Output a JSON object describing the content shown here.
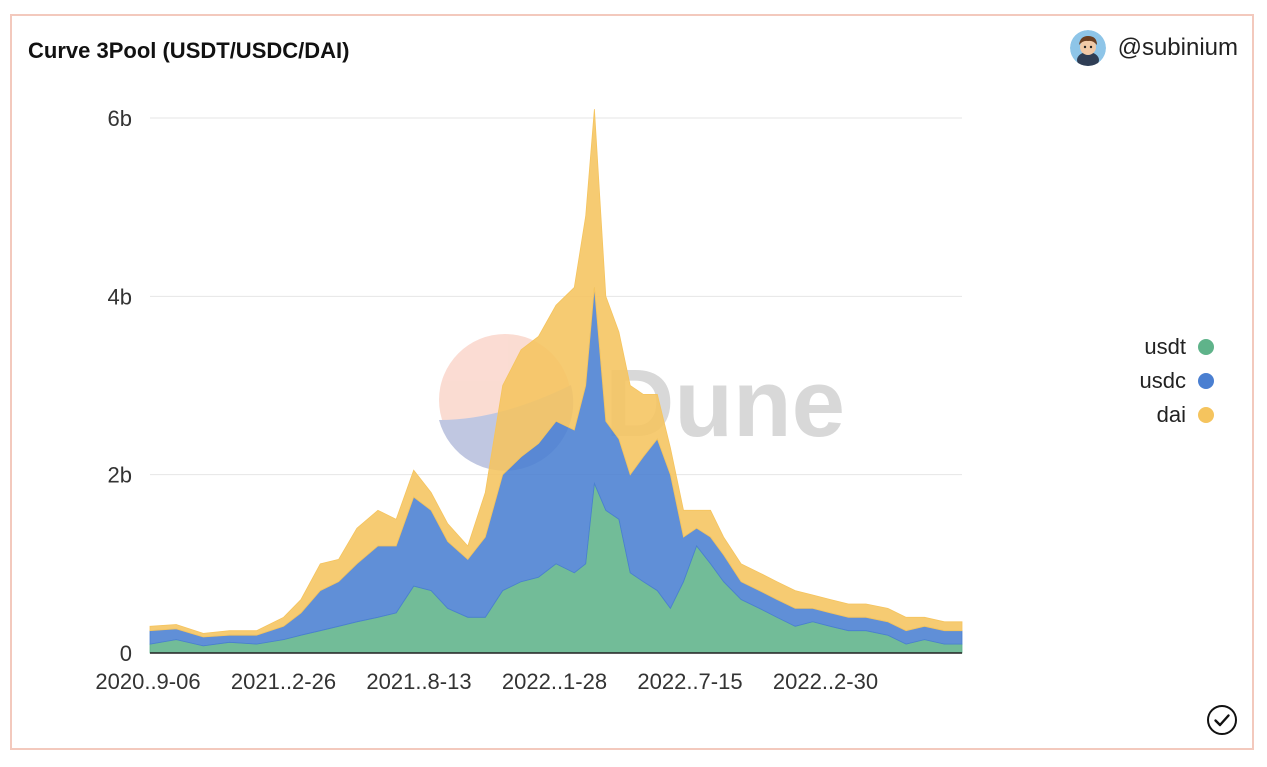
{
  "header": {
    "title": "Curve 3Pool (USDT/USDC/DAI)",
    "author": "@subinium"
  },
  "icons": {
    "avatar": "avatar-icon",
    "verified": "check-circle-icon",
    "watermark": "dune-logo"
  },
  "watermark_text": "Dune",
  "colors": {
    "usdt": "#5fb38a",
    "usdc": "#4a7fd1",
    "dai": "#f5c45e",
    "border": "#f3c9bd",
    "grid": "#e6e6e6"
  },
  "chart_data": {
    "type": "area",
    "stacked": true,
    "title": "Curve 3Pool (USDT/USDC/DAI)",
    "x_tick_labels": [
      "2020..9-06",
      "2021..2-26",
      "2021..8-13",
      "2022..1-28",
      "2022..7-15",
      "2022..2-30"
    ],
    "y_tick_labels": [
      "0",
      "2b",
      "4b",
      "6b"
    ],
    "y_ticks": [
      0,
      2000000000,
      4000000000,
      6000000000
    ],
    "ylim": [
      0,
      6000000000
    ],
    "legend_position": "right",
    "grid": true,
    "x": [
      "2020-09-06",
      "2020-10-06",
      "2020-11-06",
      "2020-12-06",
      "2021-01-06",
      "2021-02-06",
      "2021-02-26",
      "2021-03-20",
      "2021-04-10",
      "2021-05-01",
      "2021-05-25",
      "2021-06-15",
      "2021-07-05",
      "2021-07-25",
      "2021-08-13",
      "2021-09-05",
      "2021-09-25",
      "2021-10-15",
      "2021-11-05",
      "2021-11-25",
      "2021-12-15",
      "2022-01-05",
      "2022-01-18",
      "2022-01-28",
      "2022-02-10",
      "2022-02-25",
      "2022-03-10",
      "2022-03-25",
      "2022-04-10",
      "2022-04-25",
      "2022-05-10",
      "2022-05-25",
      "2022-06-10",
      "2022-06-25",
      "2022-07-15",
      "2022-08-05",
      "2022-08-25",
      "2022-09-15",
      "2022-10-05",
      "2022-10-25",
      "2022-11-15",
      "2022-12-05",
      "2022-12-30",
      "2023-01-20",
      "2023-02-10",
      "2023-03-05",
      "2023-03-25"
    ],
    "series": [
      {
        "name": "usdt",
        "values": [
          0.1,
          0.15,
          0.08,
          0.12,
          0.1,
          0.15,
          0.2,
          0.25,
          0.3,
          0.35,
          0.4,
          0.45,
          0.75,
          0.7,
          0.5,
          0.4,
          0.4,
          0.7,
          0.8,
          0.85,
          1.0,
          0.9,
          1.0,
          1.9,
          1.6,
          1.5,
          0.9,
          0.8,
          0.7,
          0.5,
          0.8,
          1.2,
          1.0,
          0.8,
          0.6,
          0.5,
          0.4,
          0.3,
          0.35,
          0.3,
          0.25,
          0.25,
          0.2,
          0.1,
          0.15,
          0.1,
          0.1
        ]
      },
      {
        "name": "usdc",
        "values": [
          0.15,
          0.12,
          0.1,
          0.08,
          0.1,
          0.15,
          0.25,
          0.45,
          0.5,
          0.65,
          0.8,
          0.75,
          1.0,
          0.9,
          0.75,
          0.65,
          0.9,
          1.3,
          1.4,
          1.5,
          1.6,
          1.6,
          2.0,
          2.2,
          1.0,
          0.9,
          1.1,
          1.4,
          1.7,
          1.5,
          0.5,
          0.2,
          0.3,
          0.3,
          0.2,
          0.2,
          0.2,
          0.2,
          0.15,
          0.15,
          0.15,
          0.15,
          0.15,
          0.15,
          0.15,
          0.15,
          0.15
        ]
      },
      {
        "name": "dai",
        "values": [
          0.05,
          0.05,
          0.04,
          0.05,
          0.05,
          0.1,
          0.15,
          0.3,
          0.25,
          0.4,
          0.4,
          0.3,
          0.3,
          0.2,
          0.2,
          0.15,
          0.5,
          1.0,
          1.2,
          1.2,
          1.3,
          1.6,
          1.9,
          2.0,
          1.4,
          1.2,
          1.0,
          0.7,
          0.5,
          0.3,
          0.3,
          0.2,
          0.3,
          0.2,
          0.2,
          0.2,
          0.2,
          0.2,
          0.15,
          0.15,
          0.15,
          0.15,
          0.15,
          0.15,
          0.1,
          0.1,
          0.1
        ]
      }
    ],
    "value_unit_multiplier": 1000000000
  }
}
